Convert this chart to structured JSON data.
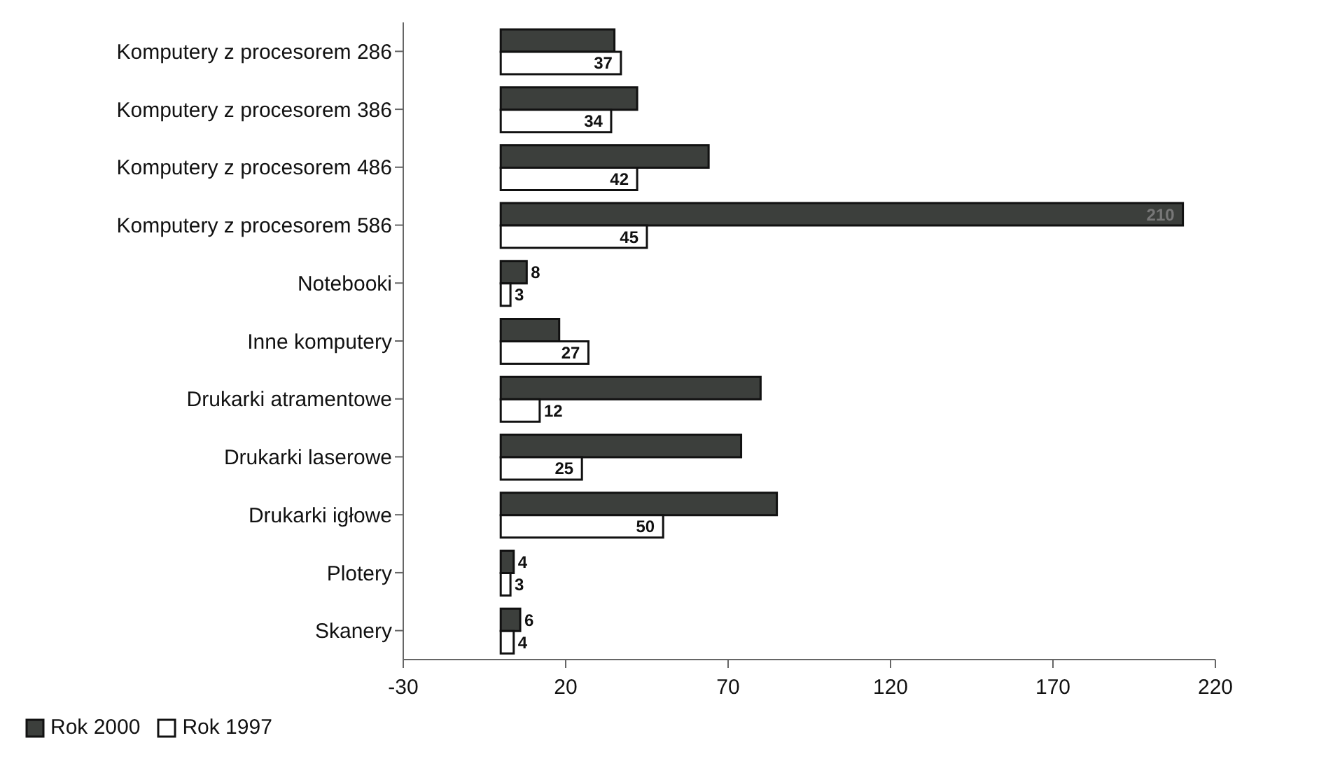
{
  "chart_data": {
    "type": "bar",
    "orientation": "horizontal",
    "categories": [
      "Komputery z procesorem 286",
      "Komputery z procesorem 386",
      "Komputery z procesorem 486",
      "Komputery z procesorem 586",
      "Notebooki",
      "Inne komputery",
      "Drukarki atramentowe",
      "Drukarki laserowe",
      "Drukarki igłowe",
      "Plotery",
      "Skanery"
    ],
    "series": [
      {
        "name": "Rok 2000",
        "color": "#3c3f3c",
        "values": [
          35,
          42,
          64,
          210,
          8,
          18,
          80,
          74,
          85,
          4,
          6
        ],
        "value_labels": [
          null,
          null,
          null,
          "210",
          "8",
          null,
          null,
          null,
          null,
          "4",
          "6"
        ]
      },
      {
        "name": "Rok 1997",
        "color": "#ffffff",
        "values": [
          37,
          34,
          42,
          45,
          3,
          27,
          12,
          25,
          50,
          3,
          4
        ],
        "value_labels": [
          "37",
          "34",
          "42",
          "45",
          "3",
          "27",
          "12",
          "25",
          "50",
          "3",
          "4"
        ]
      }
    ],
    "xlim": [
      -30,
      220
    ],
    "xticks": [
      -30,
      20,
      70,
      120,
      170,
      220
    ],
    "legend": "bottom left"
  }
}
